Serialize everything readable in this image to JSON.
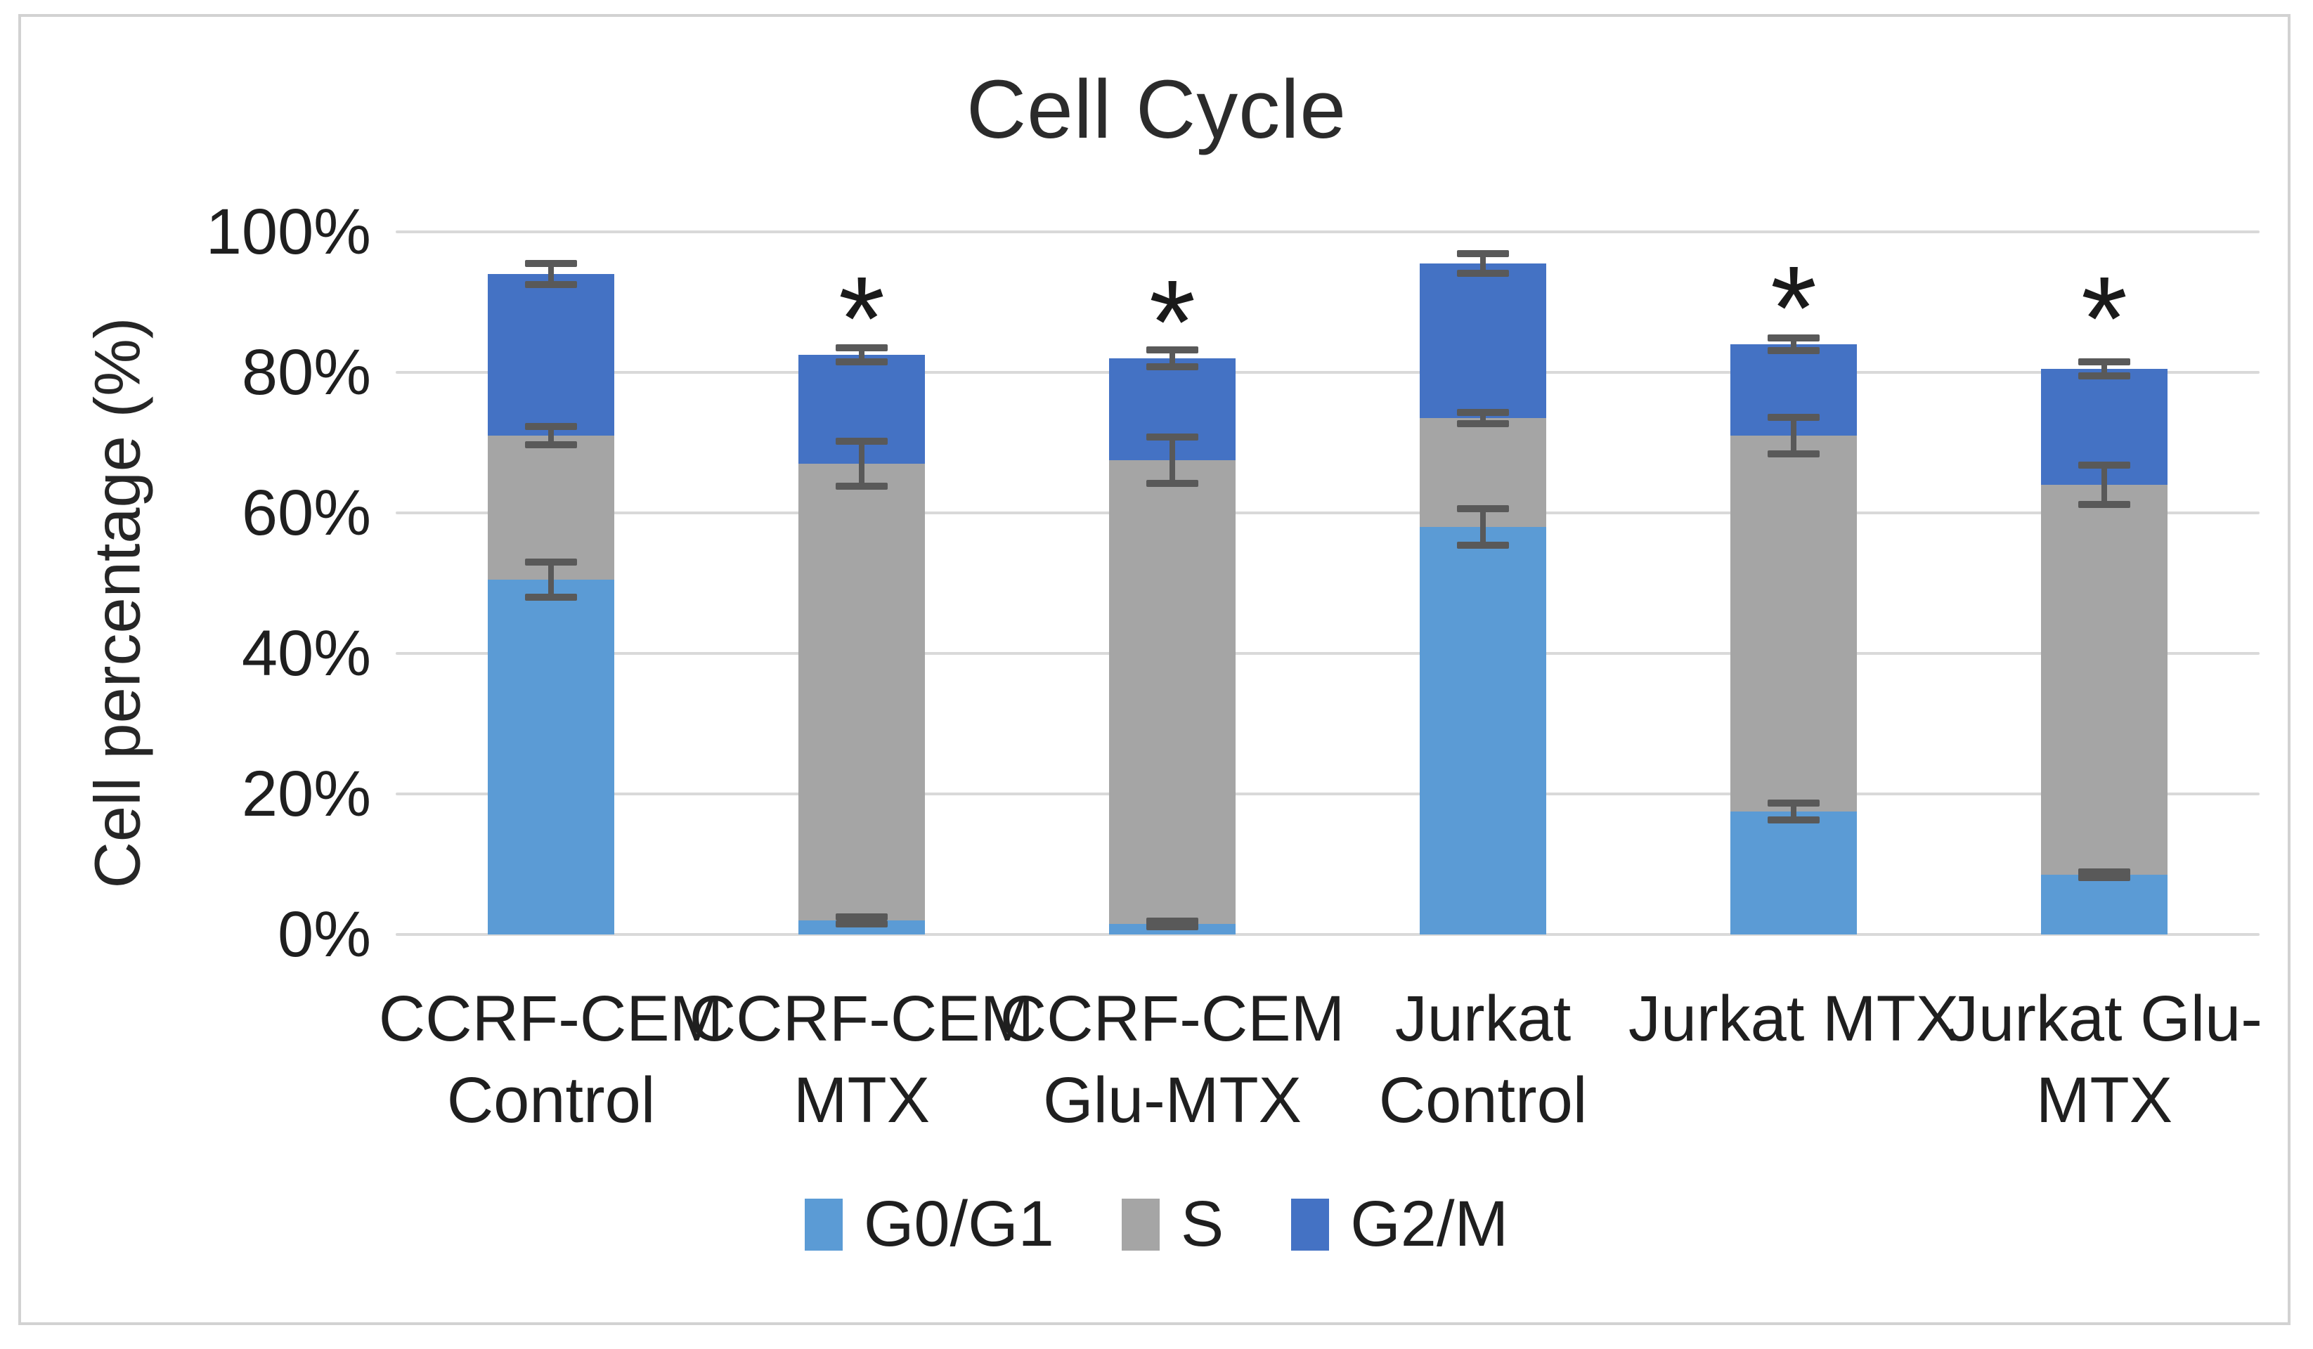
{
  "figure": {
    "background": "#ffffff",
    "frame_color": "#d2d2d2"
  },
  "chart_data": {
    "type": "bar",
    "stacked": true,
    "title": "Cell Cycle",
    "xlabel": "",
    "ylabel": "Cell percentage (%)",
    "ylim": [
      0,
      100
    ],
    "yticks": [
      0,
      20,
      40,
      60,
      80,
      100
    ],
    "ytick_labels": [
      "0%",
      "20%",
      "40%",
      "60%",
      "80%",
      "100%"
    ],
    "grid": "horizontal",
    "gridline_color": "#d9d9d9",
    "legend_position": "bottom",
    "categories": [
      "CCRF-CEM Control",
      "CCRF-CEM MTX",
      "CCRF-CEM Glu-MTX",
      "Jurkat Control",
      "Jurkat MTX",
      "Jurkat Glu-MTX"
    ],
    "category_label_lines": [
      [
        "CCRF-CEM",
        "Control"
      ],
      [
        "CCRF-CEM",
        "MTX"
      ],
      [
        "CCRF-CEM",
        "Glu-MTX"
      ],
      [
        "Jurkat",
        "Control"
      ],
      [
        "Jurkat MTX"
      ],
      [
        "Jurkat Glu-",
        "MTX"
      ]
    ],
    "series": [
      {
        "name": "G0/G1",
        "color": "#5b9bd5",
        "values": [
          50.5,
          2.0,
          1.5,
          58.0,
          17.5,
          8.5
        ],
        "errors": [
          2.5,
          0.5,
          0.4,
          2.6,
          1.2,
          0.4
        ]
      },
      {
        "name": "S",
        "color": "#a5a5a5",
        "values": [
          20.5,
          65.0,
          66.0,
          15.5,
          53.5,
          55.5
        ],
        "errors": [
          1.3,
          3.2,
          3.3,
          0.8,
          2.6,
          2.8
        ]
      },
      {
        "name": "G2/M",
        "color": "#4472c4",
        "values": [
          23.0,
          15.5,
          14.5,
          22.0,
          13.0,
          16.5
        ],
        "errors": [
          1.5,
          1.0,
          1.2,
          1.4,
          0.9,
          1.0
        ]
      }
    ],
    "stack_totals": [
      94.0,
      82.5,
      82.0,
      95.5,
      84.0,
      80.5
    ],
    "annotations": {
      "symbol": "*",
      "per_category_y": [
        null,
        91.0,
        90.5,
        null,
        92.5,
        91.0
      ]
    },
    "error_bar_color": "#595959"
  }
}
